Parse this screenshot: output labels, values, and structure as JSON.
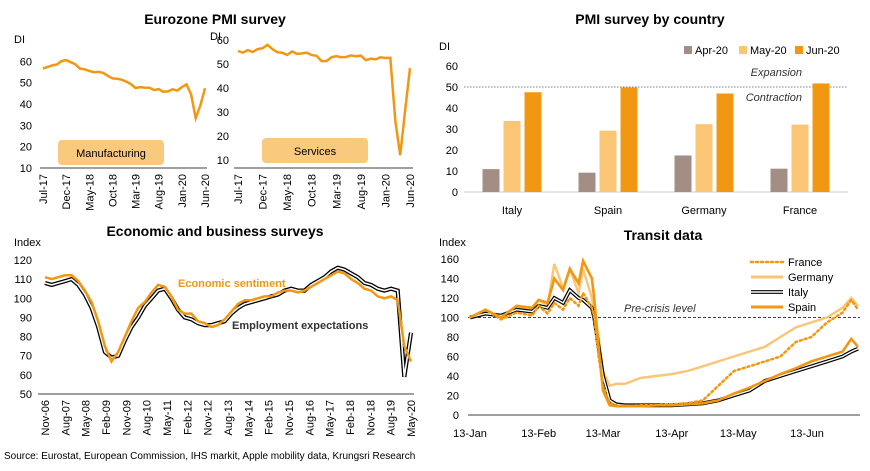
{
  "source": "Source: Eurostat, European Commission, IHS markit, Apple mobility data, Krungsri Research",
  "colors": {
    "orange": "#F29711",
    "light_orange": "#FAC574",
    "grey_brown": "#A28E86",
    "black": "#000000",
    "grey": "#9A9A9A",
    "label_box": "#F9C97D"
  },
  "chart_data": [
    {
      "id": "mfg",
      "type": "line",
      "title": "Eurozone PMI survey",
      "ylabel": "DI",
      "ylim": [
        10,
        70
      ],
      "yticks": [
        10,
        20,
        30,
        40,
        50,
        60
      ],
      "xticklabels": [
        "Jul-17",
        "Dec-17",
        "May-18",
        "Oct-18",
        "Mar-19",
        "Aug-19",
        "Jan-20",
        "Jun-20"
      ],
      "x": [
        "Jul-17",
        "Aug-17",
        "Sep-17",
        "Oct-17",
        "Nov-17",
        "Dec-17",
        "Jan-18",
        "Feb-18",
        "Mar-18",
        "Apr-18",
        "May-18",
        "Jun-18",
        "Jul-18",
        "Aug-18",
        "Sep-18",
        "Oct-18",
        "Nov-18",
        "Dec-18",
        "Jan-19",
        "Feb-19",
        "Mar-19",
        "Apr-19",
        "May-19",
        "Jun-19",
        "Jul-19",
        "Aug-19",
        "Sep-19",
        "Oct-19",
        "Nov-19",
        "Dec-19",
        "Jan-20",
        "Feb-20",
        "Mar-20",
        "Apr-20",
        "May-20",
        "Jun-20"
      ],
      "series": [
        {
          "name": "Manufacturing",
          "color": "#F29711",
          "values": [
            56.6,
            57.4,
            58.1,
            58.5,
            60.1,
            60.6,
            59.6,
            58.6,
            56.6,
            56.2,
            55.5,
            54.9,
            55.1,
            54.6,
            53.2,
            52.0,
            51.8,
            51.4,
            50.5,
            49.3,
            47.5,
            47.9,
            47.7,
            47.6,
            46.5,
            47.0,
            45.7,
            45.9,
            46.9,
            46.3,
            47.9,
            49.2,
            44.5,
            33.4,
            39.4,
            47.4
          ]
        }
      ]
    },
    {
      "id": "svc",
      "type": "line",
      "ylabel": "DI",
      "ylim": [
        10,
        60
      ],
      "yticks": [
        10,
        20,
        30,
        40,
        50,
        60
      ],
      "xticklabels": [
        "Jul-17",
        "Dec-17",
        "May-18",
        "Oct-18",
        "Mar-19",
        "Aug-19",
        "Jan-20",
        "Jun-20"
      ],
      "x": [
        "Jul-17",
        "Aug-17",
        "Sep-17",
        "Oct-17",
        "Nov-17",
        "Dec-17",
        "Jan-18",
        "Feb-18",
        "Mar-18",
        "Apr-18",
        "May-18",
        "Jun-18",
        "Jul-18",
        "Aug-18",
        "Sep-18",
        "Oct-18",
        "Nov-18",
        "Dec-18",
        "Jan-19",
        "Feb-19",
        "Mar-19",
        "Apr-19",
        "May-19",
        "Jun-19",
        "Jul-19",
        "Aug-19",
        "Sep-19",
        "Oct-19",
        "Nov-19",
        "Dec-19",
        "Jan-20",
        "Feb-20",
        "Mar-20",
        "Apr-20",
        "May-20",
        "Jun-20"
      ],
      "series": [
        {
          "name": "Services",
          "color": "#F29711",
          "values": [
            55.4,
            54.7,
            55.8,
            55.0,
            56.2,
            56.6,
            58.0,
            56.2,
            54.9,
            54.7,
            53.8,
            55.2,
            54.2,
            54.4,
            54.7,
            53.7,
            53.4,
            51.2,
            51.2,
            52.8,
            53.3,
            52.8,
            52.9,
            53.6,
            53.2,
            53.5,
            51.6,
            52.2,
            51.9,
            52.8,
            52.5,
            52.6,
            26.4,
            12.0,
            30.5,
            48.3
          ]
        }
      ]
    },
    {
      "id": "country",
      "type": "bar",
      "title": "PMI survey by country",
      "ylabel": "DI",
      "ylim": [
        0,
        60
      ],
      "yticks": [
        0,
        10,
        20,
        30,
        40,
        50,
        60
      ],
      "categories": [
        "Italy",
        "Spain",
        "Germany",
        "France"
      ],
      "series": [
        {
          "name": "Apr-20",
          "color": "#A28E86",
          "values": [
            10.9,
            9.2,
            17.4,
            11.1
          ]
        },
        {
          "name": "May-20",
          "color": "#FAC574",
          "values": [
            33.8,
            29.2,
            32.3,
            32.1
          ]
        },
        {
          "name": "Jun-20",
          "color": "#F29711",
          "values": [
            47.5,
            49.8,
            46.9,
            51.7
          ]
        }
      ],
      "reference_line": {
        "value": 50,
        "labels": [
          "Expansion",
          "Contraction"
        ]
      },
      "legend": "top"
    },
    {
      "id": "surveys",
      "type": "line",
      "title": "Economic and business surveys",
      "ylabel": "Index",
      "ylim": [
        50,
        120
      ],
      "yticks": [
        50,
        60,
        70,
        80,
        90,
        100,
        110,
        120
      ],
      "xticklabels": [
        "Nov-06",
        "Aug-07",
        "May-08",
        "Feb-09",
        "Nov-09",
        "Aug-10",
        "May-11",
        "Feb-12",
        "Nov-12",
        "Aug-13",
        "May-14",
        "Feb-15",
        "Nov-15",
        "Aug-16",
        "May-17",
        "Feb-18",
        "Nov-18",
        "Aug-19",
        "May-20"
      ],
      "series": [
        {
          "name": "Economic sentiment",
          "color": "#F29711",
          "values": [
            111,
            110,
            111,
            112,
            112,
            109,
            104,
            98,
            88,
            75,
            67,
            72,
            80,
            88,
            95,
            98,
            103,
            107,
            106,
            101,
            94,
            92,
            92,
            88,
            87,
            85,
            86,
            89,
            93,
            97,
            99,
            99,
            100,
            101,
            101,
            103,
            104,
            104,
            103,
            104,
            106,
            108,
            110,
            112,
            114,
            113,
            110,
            108,
            105,
            104,
            101,
            100,
            101,
            99,
            75,
            67
          ]
        },
        {
          "name": "Employment expectations",
          "color": "#000000",
          "values": [
            108,
            107,
            108,
            109,
            110,
            107,
            102,
            95,
            85,
            72,
            69,
            70,
            78,
            85,
            90,
            96,
            100,
            104,
            105,
            100,
            94,
            90,
            89,
            87,
            86,
            86,
            87,
            88,
            92,
            95,
            97,
            98,
            99,
            100,
            101,
            102,
            104,
            105,
            104,
            104,
            107,
            109,
            111,
            114,
            116,
            115,
            113,
            111,
            108,
            107,
            105,
            104,
            105,
            104,
            59,
            82
          ]
        }
      ],
      "annotations": [
        "Economic sentiment",
        "Employment expectations"
      ]
    },
    {
      "id": "transit",
      "type": "line",
      "title": "Transit data",
      "ylabel": "Index",
      "ylim": [
        0,
        160
      ],
      "yticks": [
        0,
        20,
        40,
        60,
        80,
        100,
        120,
        140,
        160
      ],
      "xticklabels": [
        "13-Jan",
        "13-Feb",
        "13-Mar",
        "13-Apr",
        "13-May",
        "13-Jun"
      ],
      "x_days": [
        0,
        7,
        14,
        21,
        28,
        31,
        35,
        38,
        42,
        45,
        49,
        51,
        55,
        56,
        58,
        60,
        63,
        66,
        70,
        77,
        84,
        91,
        98,
        105,
        112,
        119,
        126,
        133,
        140,
        147,
        154,
        161,
        168,
        172,
        175
      ],
      "series": [
        {
          "name": "France",
          "color": "#F29711",
          "style": "dotted",
          "values": [
            100,
            108,
            98,
            105,
            102,
            112,
            104,
            115,
            108,
            120,
            112,
            125,
            110,
            100,
            60,
            30,
            12,
            10,
            9,
            10,
            10,
            11,
            12,
            15,
            30,
            45,
            50,
            55,
            60,
            75,
            80,
            95,
            105,
            118,
            108
          ]
        },
        {
          "name": "Germany",
          "color": "#FAC574",
          "style": "solid",
          "values": [
            100,
            105,
            100,
            110,
            108,
            118,
            112,
            155,
            130,
            150,
            125,
            150,
            120,
            105,
            80,
            45,
            30,
            32,
            32,
            38,
            40,
            42,
            45,
            50,
            55,
            60,
            65,
            70,
            80,
            90,
            95,
            100,
            110,
            120,
            112
          ]
        },
        {
          "name": "Italy",
          "color": "#000000",
          "style": "double",
          "values": [
            100,
            104,
            102,
            108,
            106,
            112,
            110,
            120,
            115,
            128,
            120,
            118,
            110,
            100,
            70,
            40,
            15,
            11,
            10,
            10,
            10,
            10,
            11,
            12,
            15,
            20,
            25,
            35,
            40,
            45,
            50,
            55,
            60,
            65,
            68
          ]
        },
        {
          "name": "Spain",
          "color": "#F29711",
          "style": "solid",
          "values": [
            100,
            108,
            100,
            112,
            110,
            118,
            115,
            140,
            128,
            150,
            135,
            158,
            140,
            120,
            70,
            25,
            10,
            9,
            9,
            9,
            10,
            10,
            11,
            12,
            15,
            22,
            28,
            35,
            42,
            48,
            55,
            60,
            65,
            78,
            70
          ]
        }
      ],
      "reference_line": {
        "value": 100,
        "label": "Pre-crisis level"
      },
      "legend": "top-right"
    }
  ]
}
